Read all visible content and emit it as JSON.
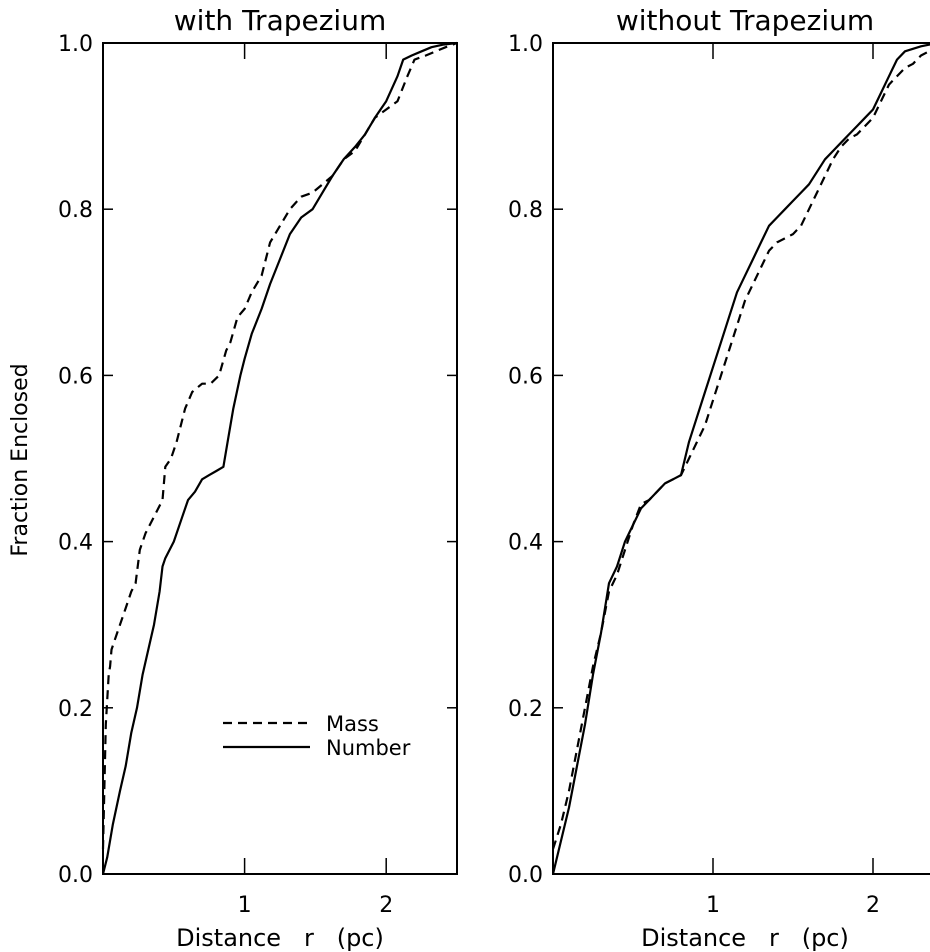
{
  "figure": {
    "ylabel": "Fraction Enclosed"
  },
  "chart_data": [
    {
      "type": "line",
      "title": "with Trapezium",
      "xlabel": "Distance   r   (pc)",
      "ylabel": "Fraction Enclosed",
      "xlim": [
        0,
        2.5
      ],
      "ylim": [
        0,
        1.0
      ],
      "xticks": [
        1,
        2
      ],
      "xtick_labels": [
        "1",
        "2"
      ],
      "yticks": [
        0.0,
        0.2,
        0.4,
        0.6,
        0.8,
        1.0
      ],
      "ytick_labels": [
        "0.0",
        "0.2",
        "0.4",
        "0.6",
        "0.8",
        "1.0"
      ],
      "legend": {
        "position": "lower-right",
        "entries": [
          {
            "label": "Mass",
            "style": "dashed"
          },
          {
            "label": "Number",
            "style": "solid"
          }
        ]
      },
      "series": [
        {
          "name": "Mass",
          "style": "dashed",
          "x": [
            0,
            0.02,
            0.04,
            0.05,
            0.06,
            0.08,
            0.12,
            0.16,
            0.2,
            0.23,
            0.26,
            0.3,
            0.36,
            0.42,
            0.44,
            0.48,
            0.52,
            0.58,
            0.63,
            0.7,
            0.76,
            0.82,
            0.87,
            0.9,
            0.95,
            1.0,
            1.05,
            1.12,
            1.18,
            1.25,
            1.32,
            1.4,
            1.48,
            1.55,
            1.62,
            1.7,
            1.78,
            1.85,
            1.92,
            2.0,
            2.08,
            2.15,
            2.2,
            2.28,
            2.35,
            2.42,
            2.5
          ],
          "y": [
            0.03,
            0.18,
            0.24,
            0.25,
            0.27,
            0.28,
            0.3,
            0.32,
            0.34,
            0.35,
            0.39,
            0.41,
            0.43,
            0.45,
            0.49,
            0.5,
            0.52,
            0.56,
            0.58,
            0.59,
            0.59,
            0.6,
            0.63,
            0.64,
            0.67,
            0.68,
            0.7,
            0.72,
            0.76,
            0.78,
            0.8,
            0.815,
            0.82,
            0.83,
            0.84,
            0.86,
            0.87,
            0.89,
            0.91,
            0.92,
            0.93,
            0.96,
            0.98,
            0.985,
            0.99,
            0.995,
            1.0
          ]
        },
        {
          "name": "Number",
          "style": "solid",
          "x": [
            0,
            0.03,
            0.07,
            0.12,
            0.16,
            0.2,
            0.24,
            0.28,
            0.32,
            0.36,
            0.4,
            0.42,
            0.44,
            0.5,
            0.56,
            0.6,
            0.65,
            0.7,
            0.75,
            0.8,
            0.85,
            0.88,
            0.92,
            0.97,
            1.0,
            1.05,
            1.12,
            1.18,
            1.25,
            1.32,
            1.4,
            1.48,
            1.55,
            1.62,
            1.7,
            1.78,
            1.85,
            1.92,
            2.0,
            2.08,
            2.12,
            2.18,
            2.25,
            2.32,
            2.4,
            2.5
          ],
          "y": [
            0.0,
            0.02,
            0.06,
            0.1,
            0.13,
            0.17,
            0.2,
            0.24,
            0.27,
            0.3,
            0.34,
            0.37,
            0.38,
            0.4,
            0.43,
            0.45,
            0.46,
            0.475,
            0.48,
            0.485,
            0.49,
            0.52,
            0.56,
            0.6,
            0.62,
            0.65,
            0.68,
            0.71,
            0.74,
            0.77,
            0.79,
            0.8,
            0.82,
            0.84,
            0.86,
            0.875,
            0.89,
            0.91,
            0.93,
            0.96,
            0.98,
            0.985,
            0.99,
            0.995,
            0.998,
            1.0
          ]
        }
      ]
    },
    {
      "type": "line",
      "title": "without Trapezium",
      "xlabel": "Distance   r   (pc)",
      "ylabel": "",
      "xlim": [
        0,
        2.5
      ],
      "ylim": [
        0,
        1.0
      ],
      "xticks": [
        1,
        2
      ],
      "xtick_labels": [
        "1",
        "2"
      ],
      "yticks": [
        0.0,
        0.2,
        0.4,
        0.6,
        0.8,
        1.0
      ],
      "ytick_labels": [
        "0.0",
        "0.2",
        "0.4",
        "0.6",
        "0.8",
        "1.0"
      ],
      "series": [
        {
          "name": "Mass",
          "style": "dashed",
          "x": [
            0,
            0.05,
            0.1,
            0.15,
            0.2,
            0.25,
            0.3,
            0.35,
            0.4,
            0.45,
            0.5,
            0.55,
            0.6,
            0.65,
            0.7,
            0.75,
            0.8,
            0.85,
            0.9,
            0.95,
            1.0,
            1.05,
            1.1,
            1.15,
            1.2,
            1.25,
            1.3,
            1.35,
            1.4,
            1.45,
            1.5,
            1.55,
            1.6,
            1.65,
            1.7,
            1.75,
            1.8,
            1.85,
            1.9,
            1.95,
            2.0,
            2.05,
            2.1,
            2.15,
            2.2,
            2.25,
            2.3,
            2.35,
            2.4,
            2.5
          ],
          "y": [
            0.03,
            0.06,
            0.1,
            0.15,
            0.2,
            0.25,
            0.29,
            0.34,
            0.36,
            0.39,
            0.42,
            0.445,
            0.45,
            0.46,
            0.47,
            0.475,
            0.48,
            0.5,
            0.52,
            0.54,
            0.57,
            0.6,
            0.63,
            0.66,
            0.69,
            0.71,
            0.73,
            0.75,
            0.76,
            0.765,
            0.77,
            0.78,
            0.8,
            0.82,
            0.84,
            0.86,
            0.875,
            0.885,
            0.89,
            0.9,
            0.91,
            0.93,
            0.95,
            0.96,
            0.97,
            0.975,
            0.985,
            0.99,
            0.995,
            1.0
          ]
        },
        {
          "name": "Number",
          "style": "solid",
          "x": [
            0,
            0.05,
            0.1,
            0.15,
            0.2,
            0.25,
            0.3,
            0.35,
            0.4,
            0.45,
            0.5,
            0.55,
            0.6,
            0.65,
            0.7,
            0.75,
            0.8,
            0.85,
            0.9,
            0.95,
            1.0,
            1.05,
            1.1,
            1.15,
            1.2,
            1.25,
            1.3,
            1.35,
            1.4,
            1.45,
            1.5,
            1.55,
            1.6,
            1.65,
            1.7,
            1.75,
            1.8,
            1.85,
            1.9,
            1.95,
            2.0,
            2.05,
            2.1,
            2.15,
            2.2,
            2.25,
            2.3,
            2.35,
            2.4,
            2.5
          ],
          "y": [
            0.0,
            0.04,
            0.08,
            0.13,
            0.18,
            0.24,
            0.29,
            0.35,
            0.37,
            0.4,
            0.42,
            0.44,
            0.45,
            0.46,
            0.47,
            0.475,
            0.48,
            0.52,
            0.55,
            0.58,
            0.61,
            0.64,
            0.67,
            0.7,
            0.72,
            0.74,
            0.76,
            0.78,
            0.79,
            0.8,
            0.81,
            0.82,
            0.83,
            0.845,
            0.86,
            0.87,
            0.88,
            0.89,
            0.9,
            0.91,
            0.92,
            0.94,
            0.96,
            0.98,
            0.99,
            0.993,
            0.996,
            0.998,
            1.0,
            1.0
          ]
        }
      ]
    }
  ]
}
